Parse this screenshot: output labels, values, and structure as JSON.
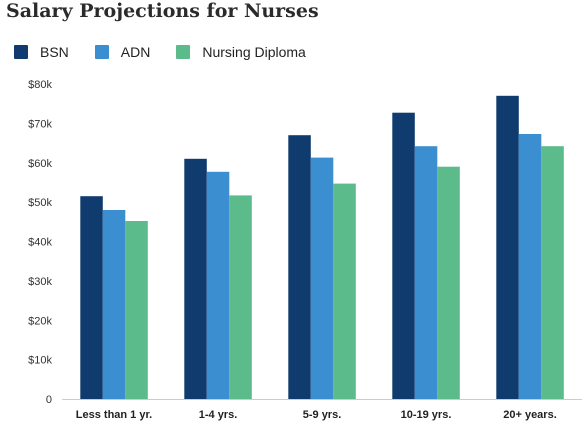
{
  "chart_data": {
    "type": "bar",
    "title": "Salary Projections for Nurses",
    "categories": [
      "Less than 1 yr.",
      "1-4 yrs.",
      "5-9 yrs.",
      "10-19 yrs.",
      "20+ years."
    ],
    "series": [
      {
        "name": "BSN",
        "color": "#0f3b6e",
        "values": [
          51500,
          61000,
          67000,
          72700,
          77000
        ]
      },
      {
        "name": "ADN",
        "color": "#3b8fd0",
        "values": [
          48000,
          57700,
          61300,
          64200,
          67300
        ]
      },
      {
        "name": "Nursing Diploma",
        "color": "#5cbb8a",
        "values": [
          45200,
          51700,
          54700,
          59000,
          64200
        ]
      }
    ],
    "y_ticks": [
      {
        "value": 0,
        "label": "0"
      },
      {
        "value": 10000,
        "label": "$10k"
      },
      {
        "value": 20000,
        "label": "$20k"
      },
      {
        "value": 30000,
        "label": "$30k"
      },
      {
        "value": 40000,
        "label": "$40k"
      },
      {
        "value": 50000,
        "label": "$50k"
      },
      {
        "value": 60000,
        "label": "$60k"
      },
      {
        "value": 70000,
        "label": "$70k"
      },
      {
        "value": 80000,
        "label": "$80k"
      }
    ],
    "ylim": [
      0,
      80000
    ],
    "xlabel": "",
    "ylabel": "",
    "grid": false,
    "legend": "top-left"
  }
}
